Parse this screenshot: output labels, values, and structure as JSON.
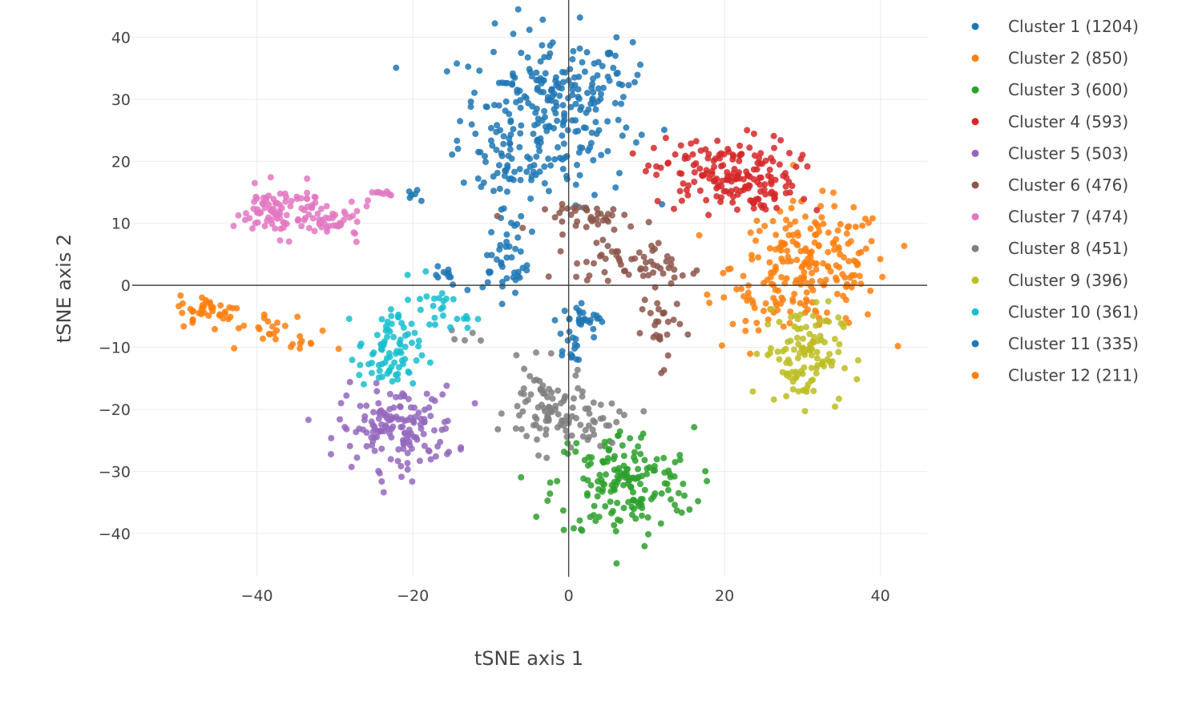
{
  "chart_data": {
    "type": "scatter",
    "title": "",
    "xlabel": "tSNE axis 1",
    "ylabel": "tSNE axis 2",
    "xlim": [
      -56,
      46
    ],
    "ylim": [
      -47,
      46
    ],
    "xticks": [
      -40,
      -20,
      0,
      20,
      40
    ],
    "yticks": [
      -40,
      -30,
      -20,
      -10,
      0,
      10,
      20,
      30,
      40
    ],
    "tick_labels_x": [
      "−40",
      "−20",
      "0",
      "20",
      "40"
    ],
    "tick_labels_y": [
      "−40",
      "−30",
      "−20",
      "−10",
      "0",
      "10",
      "20",
      "30",
      "40"
    ],
    "grid": true,
    "zero_lines": true,
    "legend_position": "right",
    "series": [
      {
        "name": "Cluster 1 (1204)",
        "color": "#1f77b4",
        "count": 1204,
        "regions": [
          {
            "center": [
              -3,
              27
            ],
            "spread": [
              5.5,
              7
            ],
            "n": 240
          },
          {
            "center": [
              3,
              33
            ],
            "spread": [
              3.5,
              3
            ],
            "n": 40
          },
          {
            "center": [
              -8,
              17
            ],
            "spread": [
              2,
              4
            ],
            "n": 30
          }
        ]
      },
      {
        "name": "Cluster 2 (850)",
        "color": "#ff7f0e",
        "count": 850,
        "regions": [
          {
            "center": [
              31,
              3
            ],
            "spread": [
              5,
              5
            ],
            "n": 210
          },
          {
            "center": [
              25,
              -3
            ],
            "spread": [
              3,
              2
            ],
            "n": 20
          }
        ]
      },
      {
        "name": "Cluster 3 (600)",
        "color": "#2ca02c",
        "count": 600,
        "regions": [
          {
            "center": [
              7,
              -32
            ],
            "spread": [
              4.5,
              4.5
            ],
            "n": 170
          }
        ]
      },
      {
        "name": "Cluster 4 (593)",
        "color": "#d62728",
        "count": 593,
        "regions": [
          {
            "center": [
              20,
              18
            ],
            "spread": [
              4.5,
              3
            ],
            "n": 160
          },
          {
            "center": [
              25,
              14
            ],
            "spread": [
              3,
              2
            ],
            "n": 25
          }
        ]
      },
      {
        "name": "Cluster 5 (503)",
        "color": "#9467bd",
        "count": 503,
        "regions": [
          {
            "center": [
              -22,
              -23
            ],
            "spread": [
              3.8,
              3.3
            ],
            "n": 150
          }
        ]
      },
      {
        "name": "Cluster 6 (476)",
        "color": "#8c564b",
        "count": 476,
        "regions": [
          {
            "center": [
              4,
              11
            ],
            "spread": [
              3.5,
              1
            ],
            "n": 40
          },
          {
            "center": [
              6,
              4
            ],
            "spread": [
              4,
              1.5
            ],
            "n": 40
          },
          {
            "center": [
              12,
              2
            ],
            "spread": [
              2,
              2
            ],
            "n": 20
          },
          {
            "center": [
              12,
              -7
            ],
            "spread": [
              1.2,
              3
            ],
            "n": 25
          }
        ]
      },
      {
        "name": "Cluster 7 (474)",
        "color": "#e377c2",
        "count": 474,
        "regions": [
          {
            "center": [
              -37,
              12
            ],
            "spread": [
              3,
              2
            ],
            "n": 90
          },
          {
            "center": [
              -30,
              10
            ],
            "spread": [
              2.5,
              1.2
            ],
            "n": 35
          },
          {
            "center": [
              -24,
              14.5
            ],
            "spread": [
              1.5,
              0.6
            ],
            "n": 10
          }
        ]
      },
      {
        "name": "Cluster 8 (451)",
        "color": "#7f7f7f",
        "count": 451,
        "regions": [
          {
            "center": [
              -3,
              -20
            ],
            "spread": [
              2.5,
              3.5
            ],
            "n": 80
          },
          {
            "center": [
              3,
              -22
            ],
            "spread": [
              3,
              2
            ],
            "n": 30
          },
          {
            "center": [
              -12,
              -8
            ],
            "spread": [
              1,
              0.6
            ],
            "n": 5
          }
        ]
      },
      {
        "name": "Cluster 9 (396)",
        "color": "#bcbd22",
        "count": 396,
        "regions": [
          {
            "center": [
              30,
              -11
            ],
            "spread": [
              2.5,
              4
            ],
            "n": 110
          }
        ]
      },
      {
        "name": "Cluster 10 (361)",
        "color": "#17becf",
        "count": 361,
        "regions": [
          {
            "center": [
              -23,
              -11
            ],
            "spread": [
              2,
              3.5
            ],
            "n": 80
          },
          {
            "center": [
              -17,
              -2
            ],
            "spread": [
              1.5,
              2
            ],
            "n": 15
          },
          {
            "center": [
              -15,
              -5
            ],
            "spread": [
              1.5,
              1
            ],
            "n": 10
          }
        ]
      },
      {
        "name": "Cluster 11 (335)",
        "color": "#1f77b4",
        "count": 335,
        "regions": [
          {
            "center": [
              -8,
              3
            ],
            "spread": [
              1.5,
              2.5
            ],
            "n": 35
          },
          {
            "center": [
              1,
              -5
            ],
            "spread": [
              1.5,
              1
            ],
            "n": 15
          },
          {
            "center": [
              4,
              -6
            ],
            "spread": [
              1.5,
              1
            ],
            "n": 12
          },
          {
            "center": [
              0,
              -10
            ],
            "spread": [
              1,
              2
            ],
            "n": 15
          },
          {
            "center": [
              -16,
              2
            ],
            "spread": [
              1,
              1
            ],
            "n": 10
          },
          {
            "center": [
              -20,
              15
            ],
            "spread": [
              0.8,
              0.8
            ],
            "n": 6
          }
        ]
      },
      {
        "name": "Cluster 12 (211)",
        "color": "#ff7f0e",
        "count": 211,
        "regions": [
          {
            "center": [
              -46,
              -4
            ],
            "spread": [
              2,
              1.2
            ],
            "n": 40
          },
          {
            "center": [
              -38,
              -7
            ],
            "spread": [
              3,
              1.5
            ],
            "n": 20
          },
          {
            "center": [
              -34,
              -10
            ],
            "spread": [
              1,
              1
            ],
            "n": 8
          }
        ]
      }
    ]
  }
}
